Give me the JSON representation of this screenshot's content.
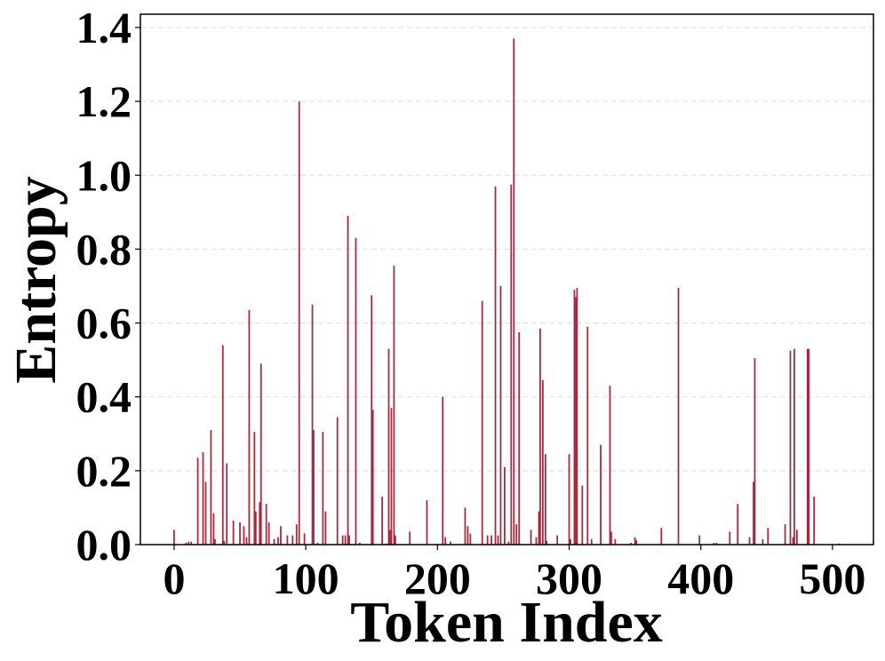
{
  "chart_data": {
    "type": "bar",
    "xlabel": "Token Index",
    "ylabel": "Entropy",
    "color": "#a8283e",
    "grid": true,
    "xlim": [
      -25.6,
      531.1
    ],
    "ylim": [
      0,
      1.436
    ],
    "xticks": [
      0,
      100,
      200,
      300,
      400,
      500
    ],
    "yticks": [
      {
        "value": 0,
        "label": "0.0"
      },
      0.2,
      0.4,
      0.6,
      0.8,
      {
        "value": 1,
        "label": "1.0"
      },
      1.2,
      1.4
    ],
    "x": [
      0,
      9,
      11,
      13,
      18,
      22,
      24,
      28,
      30,
      31,
      37,
      38,
      40,
      45,
      50,
      53,
      55,
      57,
      61,
      62,
      65,
      66,
      70,
      72,
      76,
      79,
      81,
      86,
      90,
      93,
      95,
      99,
      105,
      106,
      109,
      113,
      115,
      124,
      128,
      130,
      132,
      133,
      138,
      141,
      150,
      151,
      158,
      161,
      163,
      164,
      165,
      167,
      168,
      179,
      192,
      204,
      206,
      210,
      221,
      223,
      225,
      234,
      238,
      241,
      244,
      246,
      248,
      251,
      254,
      256,
      258,
      260,
      262,
      271,
      275,
      277,
      278,
      280,
      282,
      283,
      291,
      300,
      301,
      304,
      305,
      306,
      310,
      314,
      317,
      324,
      331,
      332,
      335,
      347,
      350,
      351,
      370,
      383,
      399,
      410,
      412,
      422,
      428,
      437,
      440,
      441,
      447,
      451,
      464,
      468,
      470,
      471,
      473,
      481,
      482,
      486,
      505
    ],
    "values": [
      0.04,
      0.005,
      0.008,
      0.008,
      0.235,
      0.25,
      0.17,
      0.31,
      0.085,
      0.015,
      0.54,
      0.01,
      0.22,
      0.065,
      0.06,
      0.05,
      0.02,
      0.635,
      0.305,
      0.09,
      0.115,
      0.49,
      0.11,
      0.06,
      0.015,
      0.02,
      0.05,
      0.025,
      0.025,
      0.055,
      1.2,
      0.03,
      0.65,
      0.31,
      0.005,
      0.305,
      0.09,
      0.345,
      0.025,
      0.025,
      0.89,
      0.025,
      0.83,
      0.005,
      0.675,
      0.365,
      0.13,
      0.003,
      0.53,
      0.04,
      0.37,
      0.755,
      0.025,
      0.035,
      0.12,
      0.4,
      0.02,
      0.008,
      0.1,
      0.05,
      0.03,
      0.66,
      0.025,
      0.025,
      0.97,
      0.025,
      0.7,
      0.21,
      0.008,
      0.975,
      1.37,
      0.055,
      0.575,
      0.04,
      0.02,
      0.09,
      0.585,
      0.445,
      0.245,
      0.01,
      0.025,
      0.245,
      0.015,
      0.69,
      0.67,
      0.695,
      0.16,
      0.59,
      0.015,
      0.27,
      0.43,
      0.035,
      0.015,
      0.005,
      0.02,
      0.012,
      0.045,
      0.695,
      0.025,
      0.005,
      0.005,
      0.035,
      0.11,
      0.02,
      0.17,
      0.505,
      0.015,
      0.045,
      0.055,
      0.525,
      0.02,
      0.53,
      0.04,
      0.53,
      0.53,
      0.13,
      0.003
    ]
  }
}
